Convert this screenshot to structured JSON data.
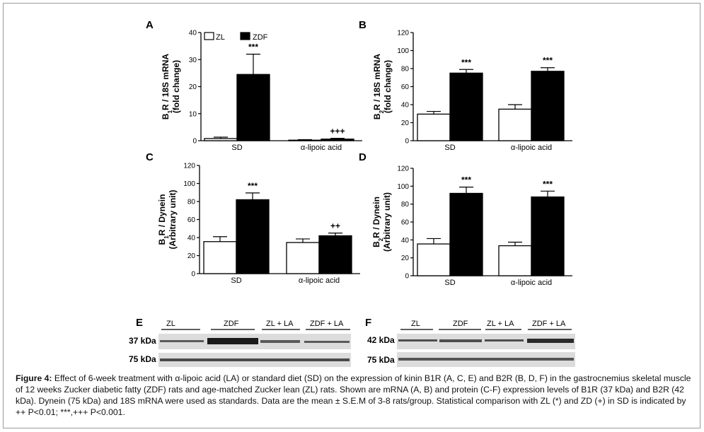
{
  "legend": {
    "zl": "ZL",
    "zdf": "ZDF"
  },
  "chart_data": [
    {
      "panel": "A",
      "type": "bar",
      "ylabel": "B1R / 18S mRNA (fold change)",
      "ylabel_main": "R / 18S mRNA",
      "ylabel_prefix": "B",
      "ylabel_sub": "1",
      "ylabel_line2": "(fold change)",
      "ylim": [
        0,
        40
      ],
      "yticks": [
        "0",
        "10",
        "20",
        "30",
        "40"
      ],
      "categories": [
        "SD",
        "α-lipoic acid"
      ],
      "series": [
        {
          "name": "ZL",
          "values": [
            0.8,
            0.2
          ],
          "errors": [
            0.5,
            0.2
          ]
        },
        {
          "name": "ZDF",
          "values": [
            24.5,
            0.6
          ],
          "errors": [
            7.5,
            0.3
          ]
        }
      ],
      "annotations": [
        {
          "category": 0,
          "series": 1,
          "text": "***"
        },
        {
          "category": 1,
          "series": 1,
          "text": "+++"
        }
      ]
    },
    {
      "panel": "B",
      "type": "bar",
      "ylabel": "B2R / 18S mRNA (fold change)",
      "ylabel_main": "R / 18S mRNA",
      "ylabel_prefix": "B",
      "ylabel_sub": "2",
      "ylabel_line2": "(fold change)",
      "ylim": [
        0,
        120
      ],
      "yticks": [
        "0",
        "20",
        "40",
        "60",
        "80",
        "100",
        "120"
      ],
      "categories": [
        "SD",
        "α-lipoic acid"
      ],
      "series": [
        {
          "name": "ZL",
          "values": [
            29.5,
            35
          ],
          "errors": [
            3,
            5
          ]
        },
        {
          "name": "ZDF",
          "values": [
            75,
            77
          ],
          "errors": [
            4,
            4
          ]
        }
      ],
      "annotations": [
        {
          "category": 0,
          "series": 1,
          "text": "***"
        },
        {
          "category": 1,
          "series": 1,
          "text": "***"
        }
      ]
    },
    {
      "panel": "C",
      "type": "bar",
      "ylabel": "B1R / Dynein (Arbitrary unit)",
      "ylabel_main": "R / Dynein",
      "ylabel_prefix": "B",
      "ylabel_sub": "1",
      "ylabel_line2": "(Arbitrary unit)",
      "ylim": [
        0,
        120
      ],
      "yticks": [
        "0",
        "20",
        "40",
        "60",
        "80",
        "100",
        "120"
      ],
      "categories": [
        "SD",
        "α-lipoic acid"
      ],
      "series": [
        {
          "name": "ZL",
          "values": [
            35.5,
            34.5
          ],
          "errors": [
            5.5,
            4
          ]
        },
        {
          "name": "ZDF",
          "values": [
            82,
            42
          ],
          "errors": [
            7.5,
            3
          ]
        }
      ],
      "annotations": [
        {
          "category": 0,
          "series": 1,
          "text": "***"
        },
        {
          "category": 1,
          "series": 1,
          "text": "++"
        }
      ]
    },
    {
      "panel": "D",
      "type": "bar",
      "ylabel": "B2R / Dynein (Arbitrary unit)",
      "ylabel_main": "R / Dynein",
      "ylabel_prefix": "B",
      "ylabel_sub": "2",
      "ylabel_line2": "(Arbitrary unit)",
      "ylim": [
        0,
        120
      ],
      "yticks": [
        "0",
        "20",
        "40",
        "60",
        "80",
        "100",
        "120"
      ],
      "categories": [
        "SD",
        "α-lipoic acid"
      ],
      "series": [
        {
          "name": "ZL",
          "values": [
            35.5,
            33.5
          ],
          "errors": [
            6,
            4
          ]
        },
        {
          "name": "ZDF",
          "values": [
            92,
            88
          ],
          "errors": [
            7,
            6.5
          ]
        }
      ],
      "annotations": [
        {
          "category": 0,
          "series": 1,
          "text": "***"
        },
        {
          "category": 1,
          "series": 1,
          "text": "***"
        }
      ]
    }
  ],
  "blots": [
    {
      "panel": "E",
      "groups": [
        "ZL",
        "ZDF",
        "ZL + LA",
        "ZDF + LA"
      ],
      "rows": [
        {
          "label": "37 kDa"
        },
        {
          "label": "75 kDa"
        }
      ]
    },
    {
      "panel": "F",
      "groups": [
        "ZL",
        "ZDF",
        "ZL + LA",
        "ZDF + LA"
      ],
      "rows": [
        {
          "label": "42 kDa"
        },
        {
          "label": "75 kDa"
        }
      ]
    }
  ],
  "caption": {
    "lead": "Figure 4:",
    "text": "Effect of 6-week treatment with α-lipoic acid (LA) or standard diet (SD) on the expression of kinin B1R (A, C, E) and B2R (B, D, F) in the gastrocnemius skeletal muscle of 12 weeks Zucker diabetic fatty (ZDF) rats and age-matched Zucker lean (ZL) rats. Shown are mRNA (A, B) and protein (C-F) expression levels of B1R (37 kDa) and B2R (42 kDa). Dynein (75 kDa) and 18S mRNA were used as standards. Data are the mean ± S.E.M of 3-8 rats/group. Statistical comparison with ZL (*) and ZD (+) in SD is indicated by ++ P<0.01; ***,+++ P<0.001."
  }
}
